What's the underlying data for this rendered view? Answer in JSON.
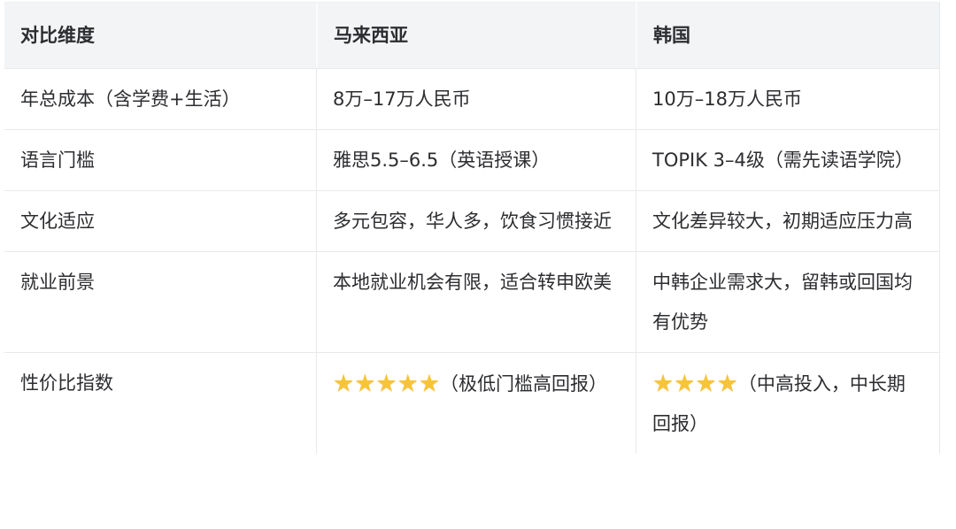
{
  "colors": {
    "header_bg": "#f3f4f6",
    "border": "#e8e9eb",
    "star_gold": "#f7c437",
    "text": "#2c2d30"
  },
  "table": {
    "headers": [
      "对比维度",
      "马来西亚",
      "韩国"
    ],
    "rows": [
      {
        "dimension": "年总成本（含学费+生活）",
        "malaysia": "8万–17万人民币",
        "korea": "10万–18万人民币"
      },
      {
        "dimension": "语言门槛",
        "malaysia": "雅思5.5–6.5（英语授课）",
        "korea": "TOPIK 3–4级（需先读语学院）"
      },
      {
        "dimension": "文化适应",
        "malaysia": "多元包容，华人多，饮食习惯接近",
        "korea": "文化差异较大，初期适应压力高"
      },
      {
        "dimension": "就业前景",
        "malaysia": "本地就业机会有限，适合转申欧美",
        "korea": "中韩企业需求大，留韩或回国均有优势"
      },
      {
        "dimension": "性价比指数",
        "malaysia_stars": 5,
        "malaysia_note": "（极低门槛高回报）",
        "korea_stars": 4,
        "korea_note": "（中高投入，中长期回报）"
      }
    ]
  }
}
